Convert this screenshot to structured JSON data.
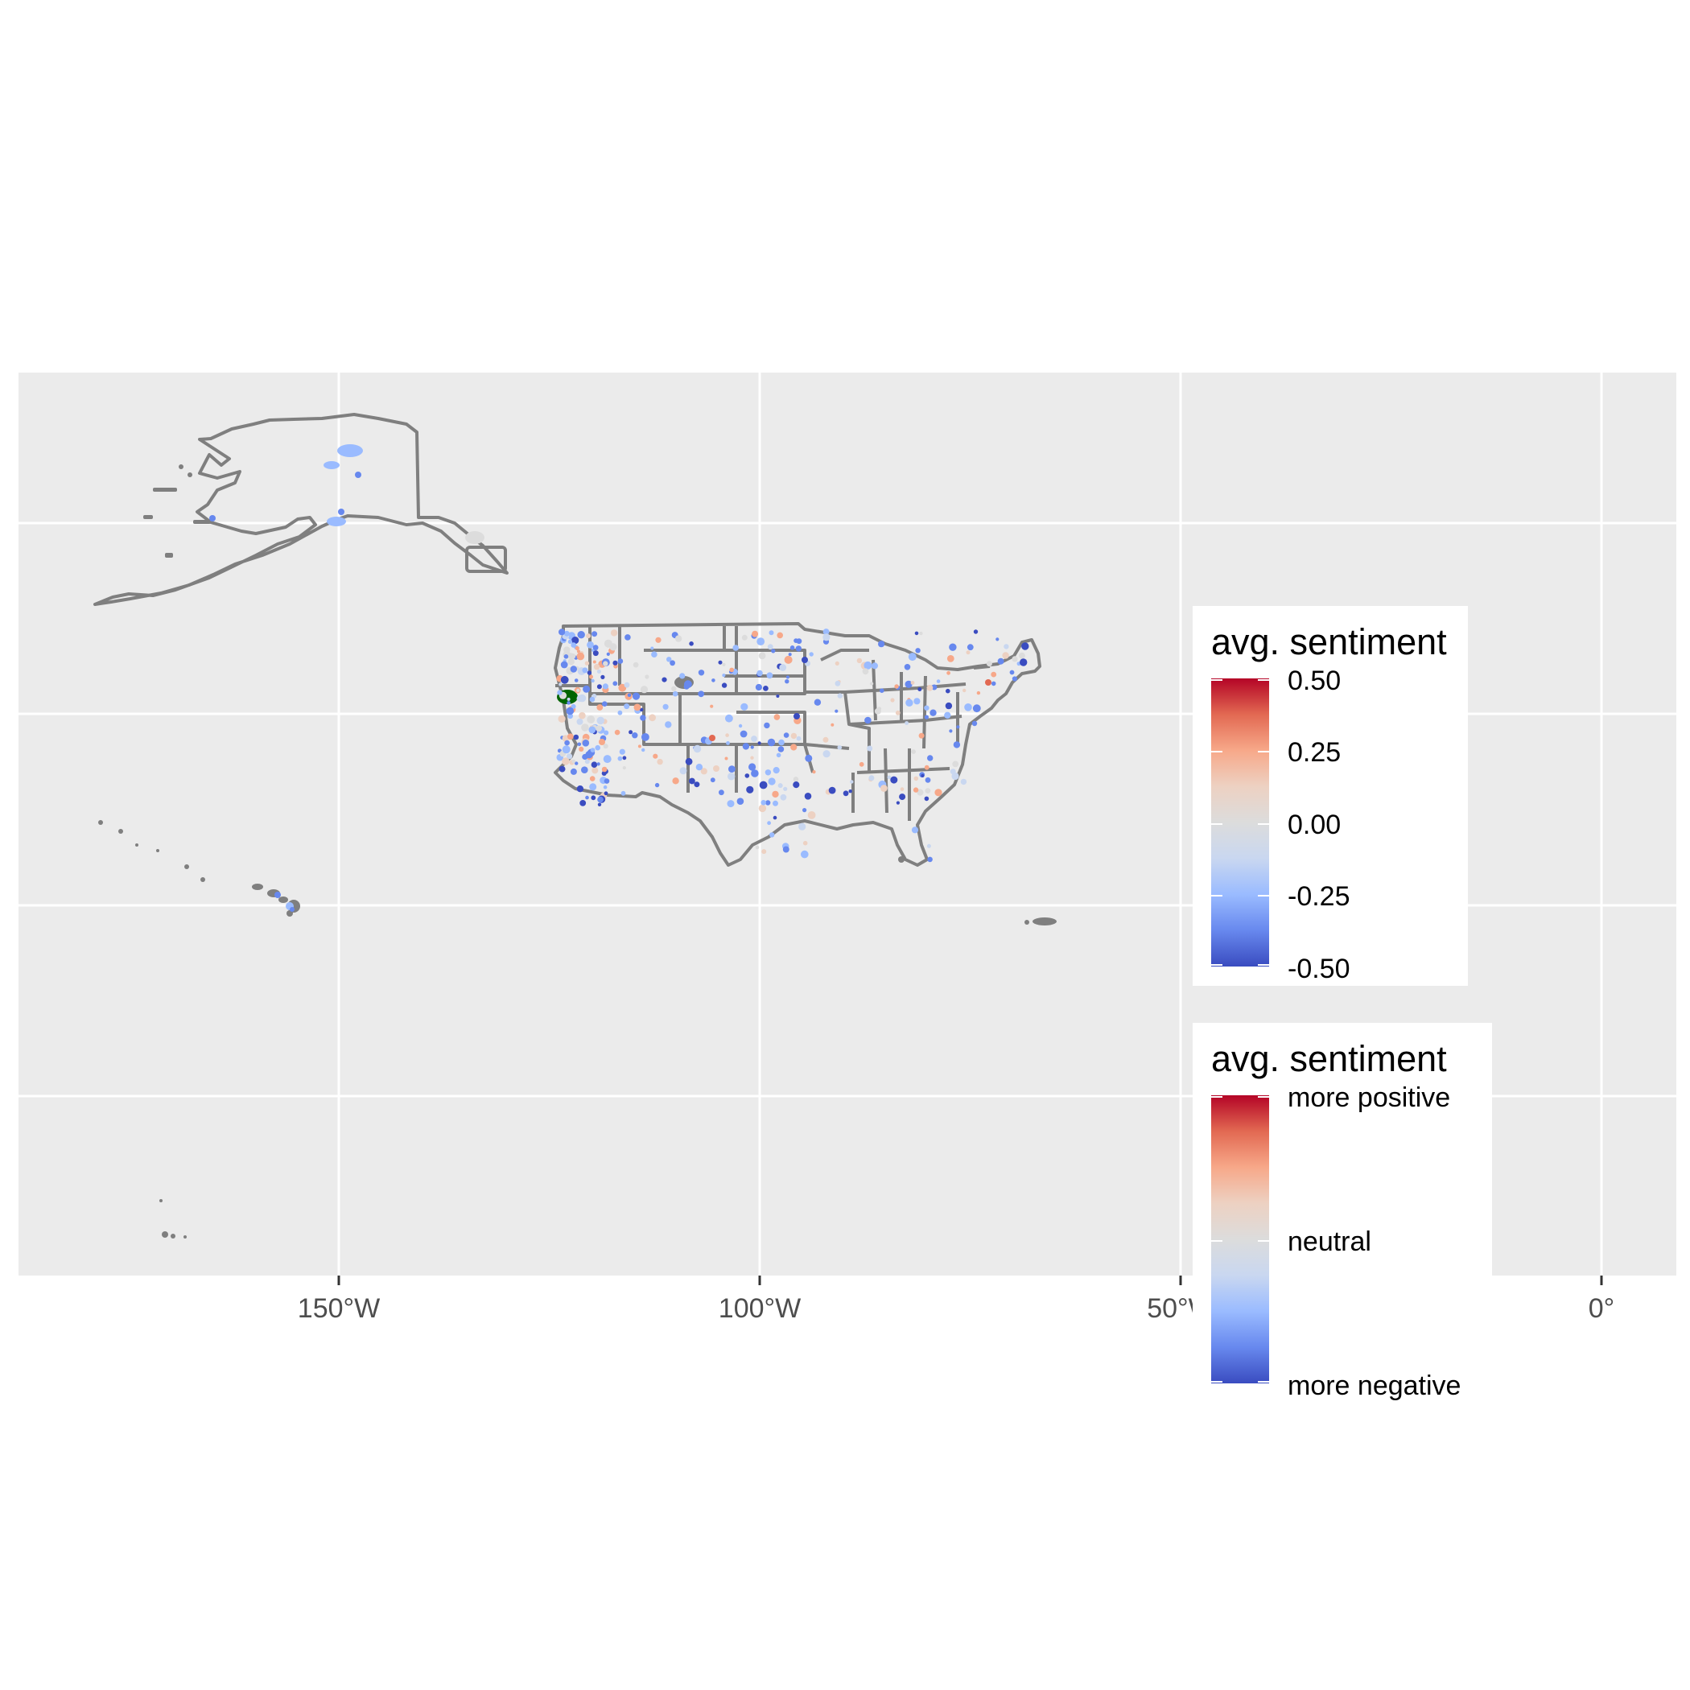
{
  "chart_data": {
    "type": "map",
    "title": "",
    "xlabel": "",
    "ylabel": "",
    "x_ticks": [
      {
        "lon": -150,
        "label": "150°W"
      },
      {
        "lon": -100,
        "label": "100°W"
      },
      {
        "lon": -50,
        "label": "50°W"
      },
      {
        "lon": 0,
        "label": "0°"
      }
    ],
    "regions": [
      "Alaska",
      "Contiguous United States",
      "Hawaii",
      "Puerto Rico"
    ],
    "grid": true,
    "panel_background": "#ebebeb",
    "outline_color": "#7f7f7f",
    "highlight_color": "#006400",
    "color_scale": {
      "low": "#3a4cc0",
      "mid": "#dcdcdc",
      "high": "#b40426",
      "stops": [
        "#3a4cc0",
        "#6788ee",
        "#9abbff",
        "#c9d7f0",
        "#dcdcdc",
        "#edd1c2",
        "#f7a889",
        "#e26952",
        "#b40426"
      ]
    },
    "legends": [
      {
        "title": "avg. sentiment",
        "position": "right",
        "breaks": [
          0.5,
          0.25,
          0.0,
          -0.25,
          -0.5
        ],
        "labels": [
          "0.50",
          "0.25",
          "0.00",
          "-0.25",
          "-0.50"
        ]
      },
      {
        "title": "avg. sentiment",
        "position": "right",
        "labels": [
          "more positive",
          "neutral",
          "more negative"
        ]
      }
    ]
  }
}
